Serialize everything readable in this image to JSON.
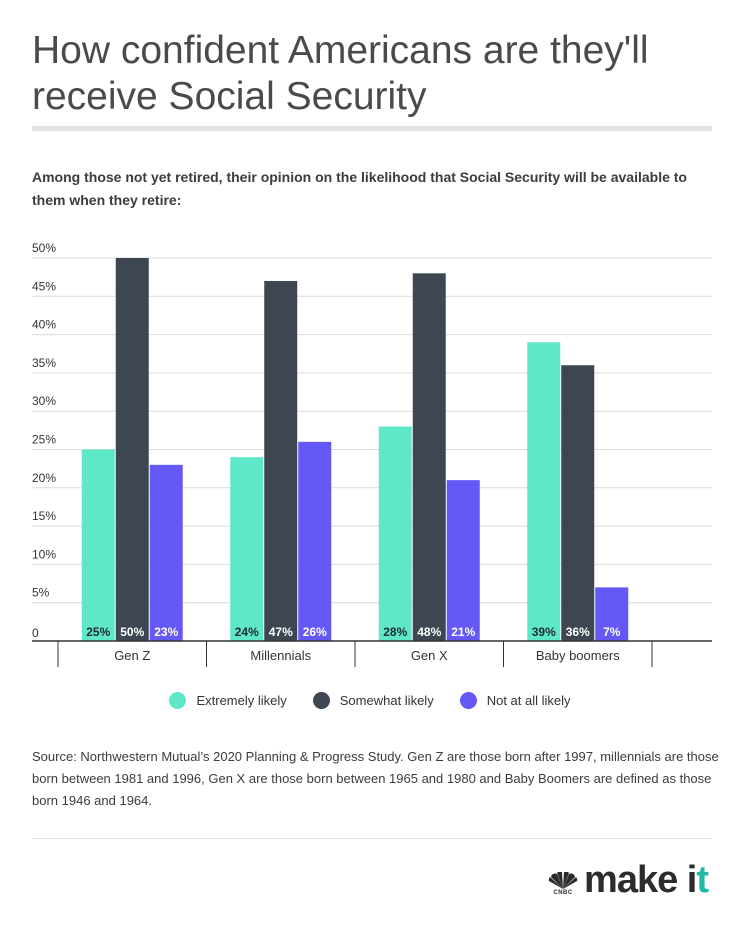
{
  "title": "How confident Americans are they'll receive Social Security",
  "subtitle": "Among those not yet retired, their opinion on the likelihood that Social Security will be available to them when they retire:",
  "source": "Source: Northwestern Mutual’s 2020 Planning & Progress Study. Gen Z are those born after 1997, millennials are those born between 1981 and 1996, Gen X are those born between 1965 and 1980 and Baby Boomers are defined as those born 1946 and 1964.",
  "logo": {
    "brand": "CNBC",
    "text_main": "make i",
    "text_end": "t"
  },
  "colors": {
    "extremely": "#5fe8c8",
    "somewhat": "#3d4651",
    "notatall": "#6458f7"
  },
  "chart_data": {
    "type": "bar",
    "title": "How confident Americans are they'll receive Social Security",
    "categories": [
      "Gen Z",
      "Millennials",
      "Gen X",
      "Baby boomers"
    ],
    "series": [
      {
        "name": "Extremely likely",
        "values": [
          25,
          24,
          28,
          39
        ],
        "labels": [
          "25%",
          "24%",
          "28%",
          "39%"
        ]
      },
      {
        "name": "Somewhat likely",
        "values": [
          50,
          47,
          48,
          36
        ],
        "labels": [
          "50%",
          "47%",
          "48%",
          "36%"
        ]
      },
      {
        "name": "Not at all likely",
        "values": [
          23,
          26,
          21,
          7
        ],
        "labels": [
          "23%",
          "26%",
          "21%",
          "7%"
        ]
      }
    ],
    "yticks": [
      "0",
      "5%",
      "10%",
      "15%",
      "20%",
      "25%",
      "30%",
      "35%",
      "40%",
      "45%",
      "50%"
    ],
    "ylim": [
      0,
      50
    ],
    "xlabel": "",
    "ylabel": "",
    "grid": true,
    "legend_position": "bottom-center"
  }
}
